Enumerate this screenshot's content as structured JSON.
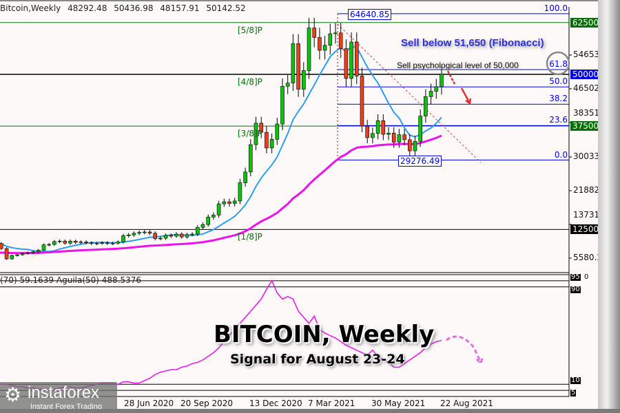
{
  "header": {
    "symbol": "Bitcoin,Weekly",
    "open": "48292.48",
    "high": "50436.98",
    "low": "48157.91",
    "close": "50142.52"
  },
  "price_axis": [
    "54653.50",
    "46502.35",
    "38351.20",
    "30033.70",
    "21882.55",
    "13731.40",
    "5580.25"
  ],
  "level_tags": [
    {
      "label": "62500.00",
      "color": "#007000",
      "price": 62500
    },
    {
      "label": "50000.00",
      "color": "#0000e0",
      "price": 50000
    },
    {
      "label": "37500.00",
      "color": "#007000",
      "price": 37500
    },
    {
      "label": "12500.00",
      "color": "#000000",
      "price": 12500
    }
  ],
  "murrey": [
    {
      "label": "[5/8]P",
      "price": 62500
    },
    {
      "label": "[4/8]P",
      "price": 50000
    },
    {
      "label": "[3/8]P",
      "price": 37500
    },
    {
      "label": "[1/8]P",
      "price": 12500
    }
  ],
  "fibonacci": {
    "high_label": "64640.85",
    "low_label": "29276.49",
    "high": 64640.85,
    "low": 29276.49,
    "levels": [
      {
        "label": "100.0",
        "pct": 100
      },
      {
        "label": "61.8",
        "pct": 61.8
      },
      {
        "label": "50.0",
        "pct": 50
      },
      {
        "label": "38.2",
        "pct": 38.2
      },
      {
        "label": "23.6",
        "pct": 23.6
      },
      {
        "label": "0.0",
        "pct": 0
      }
    ]
  },
  "annotations": {
    "sell_fib": "Sell below 51,650 (Fibonacci)",
    "sell_psych": "Sell psychological level of 50,000"
  },
  "indicator": {
    "label": "(70) 59.1639  Aguila(50) 488.5376",
    "levels": [
      "95",
      "90",
      "10",
      "5"
    ],
    "extra": "0"
  },
  "time_axis": [
    "28 Jun 2020",
    "20 Sep 2020",
    "13 Dec 2020",
    "7 Mar 2021",
    "30 May 2021",
    "22 Aug 2021"
  ],
  "overlay": {
    "title": "BITCOIN, Weekly",
    "subtitle": "Signal for August 23-24"
  },
  "logo": {
    "name": "instaforex",
    "tagline": "Instant Forex Trading"
  },
  "colors": {
    "bull": "#10c010",
    "bear": "#e8401c",
    "ma_fast": "#2a9df4",
    "ma_slow": "#ee10ee",
    "fib": "#0000ee",
    "murrey": "#008000"
  },
  "chart_data": {
    "type": "candlestick",
    "title": "Bitcoin, Weekly",
    "ylim": [
      2000,
      68000
    ],
    "weekly_close_thousands": [
      9.9,
      9.7,
      8.6,
      9.1,
      7.9,
      5.4,
      6.2,
      6.4,
      6.7,
      6.9,
      7.1,
      7.5,
      8.8,
      8.9,
      9.6,
      9.7,
      9.2,
      9.7,
      9.4,
      9.5,
      9.3,
      9.1,
      9.2,
      9.3,
      9.1,
      9.2,
      9.5,
      11.0,
      11.2,
      11.6,
      11.8,
      11.9,
      11.6,
      10.3,
      10.4,
      11.1,
      10.9,
      11.4,
      10.7,
      11.3,
      11.4,
      13.0,
      13.7,
      15.5,
      16.0,
      18.7,
      19.2,
      18.8,
      19.4,
      23.8,
      26.4,
      33.0,
      38.2,
      36.0,
      32.2,
      34.3,
      38.0,
      47.1,
      47.9,
      57.4,
      46.4,
      50.9,
      61.2,
      58.9,
      55.8,
      57.0,
      59.8,
      60.0,
      56.2,
      49.0,
      57.8,
      49.6,
      37.5,
      34.7,
      35.7,
      38.8,
      35.5,
      35.8,
      33.6,
      35.4,
      34.2,
      31.5,
      33.8,
      39.9,
      44.6,
      45.9,
      47.0,
      50.1
    ],
    "oscillator": [
      21,
      20,
      15,
      12,
      10,
      10,
      9,
      8,
      8,
      7,
      7,
      6,
      6,
      5,
      6,
      7,
      8,
      8,
      7,
      7,
      8,
      9,
      10,
      11,
      11,
      11,
      10,
      12,
      12,
      11,
      11,
      13,
      15,
      18,
      20,
      21,
      22,
      22,
      24,
      25,
      27,
      28,
      30,
      33,
      36,
      40,
      45,
      50,
      55,
      60,
      65,
      70,
      75,
      80,
      88,
      95,
      85,
      80,
      82,
      80,
      70,
      65,
      60,
      66,
      55,
      52,
      50,
      48,
      45,
      42,
      40,
      38,
      36,
      34,
      38,
      33,
      30,
      28,
      24,
      24,
      27,
      30,
      33,
      36,
      40,
      43,
      45,
      46
    ]
  }
}
